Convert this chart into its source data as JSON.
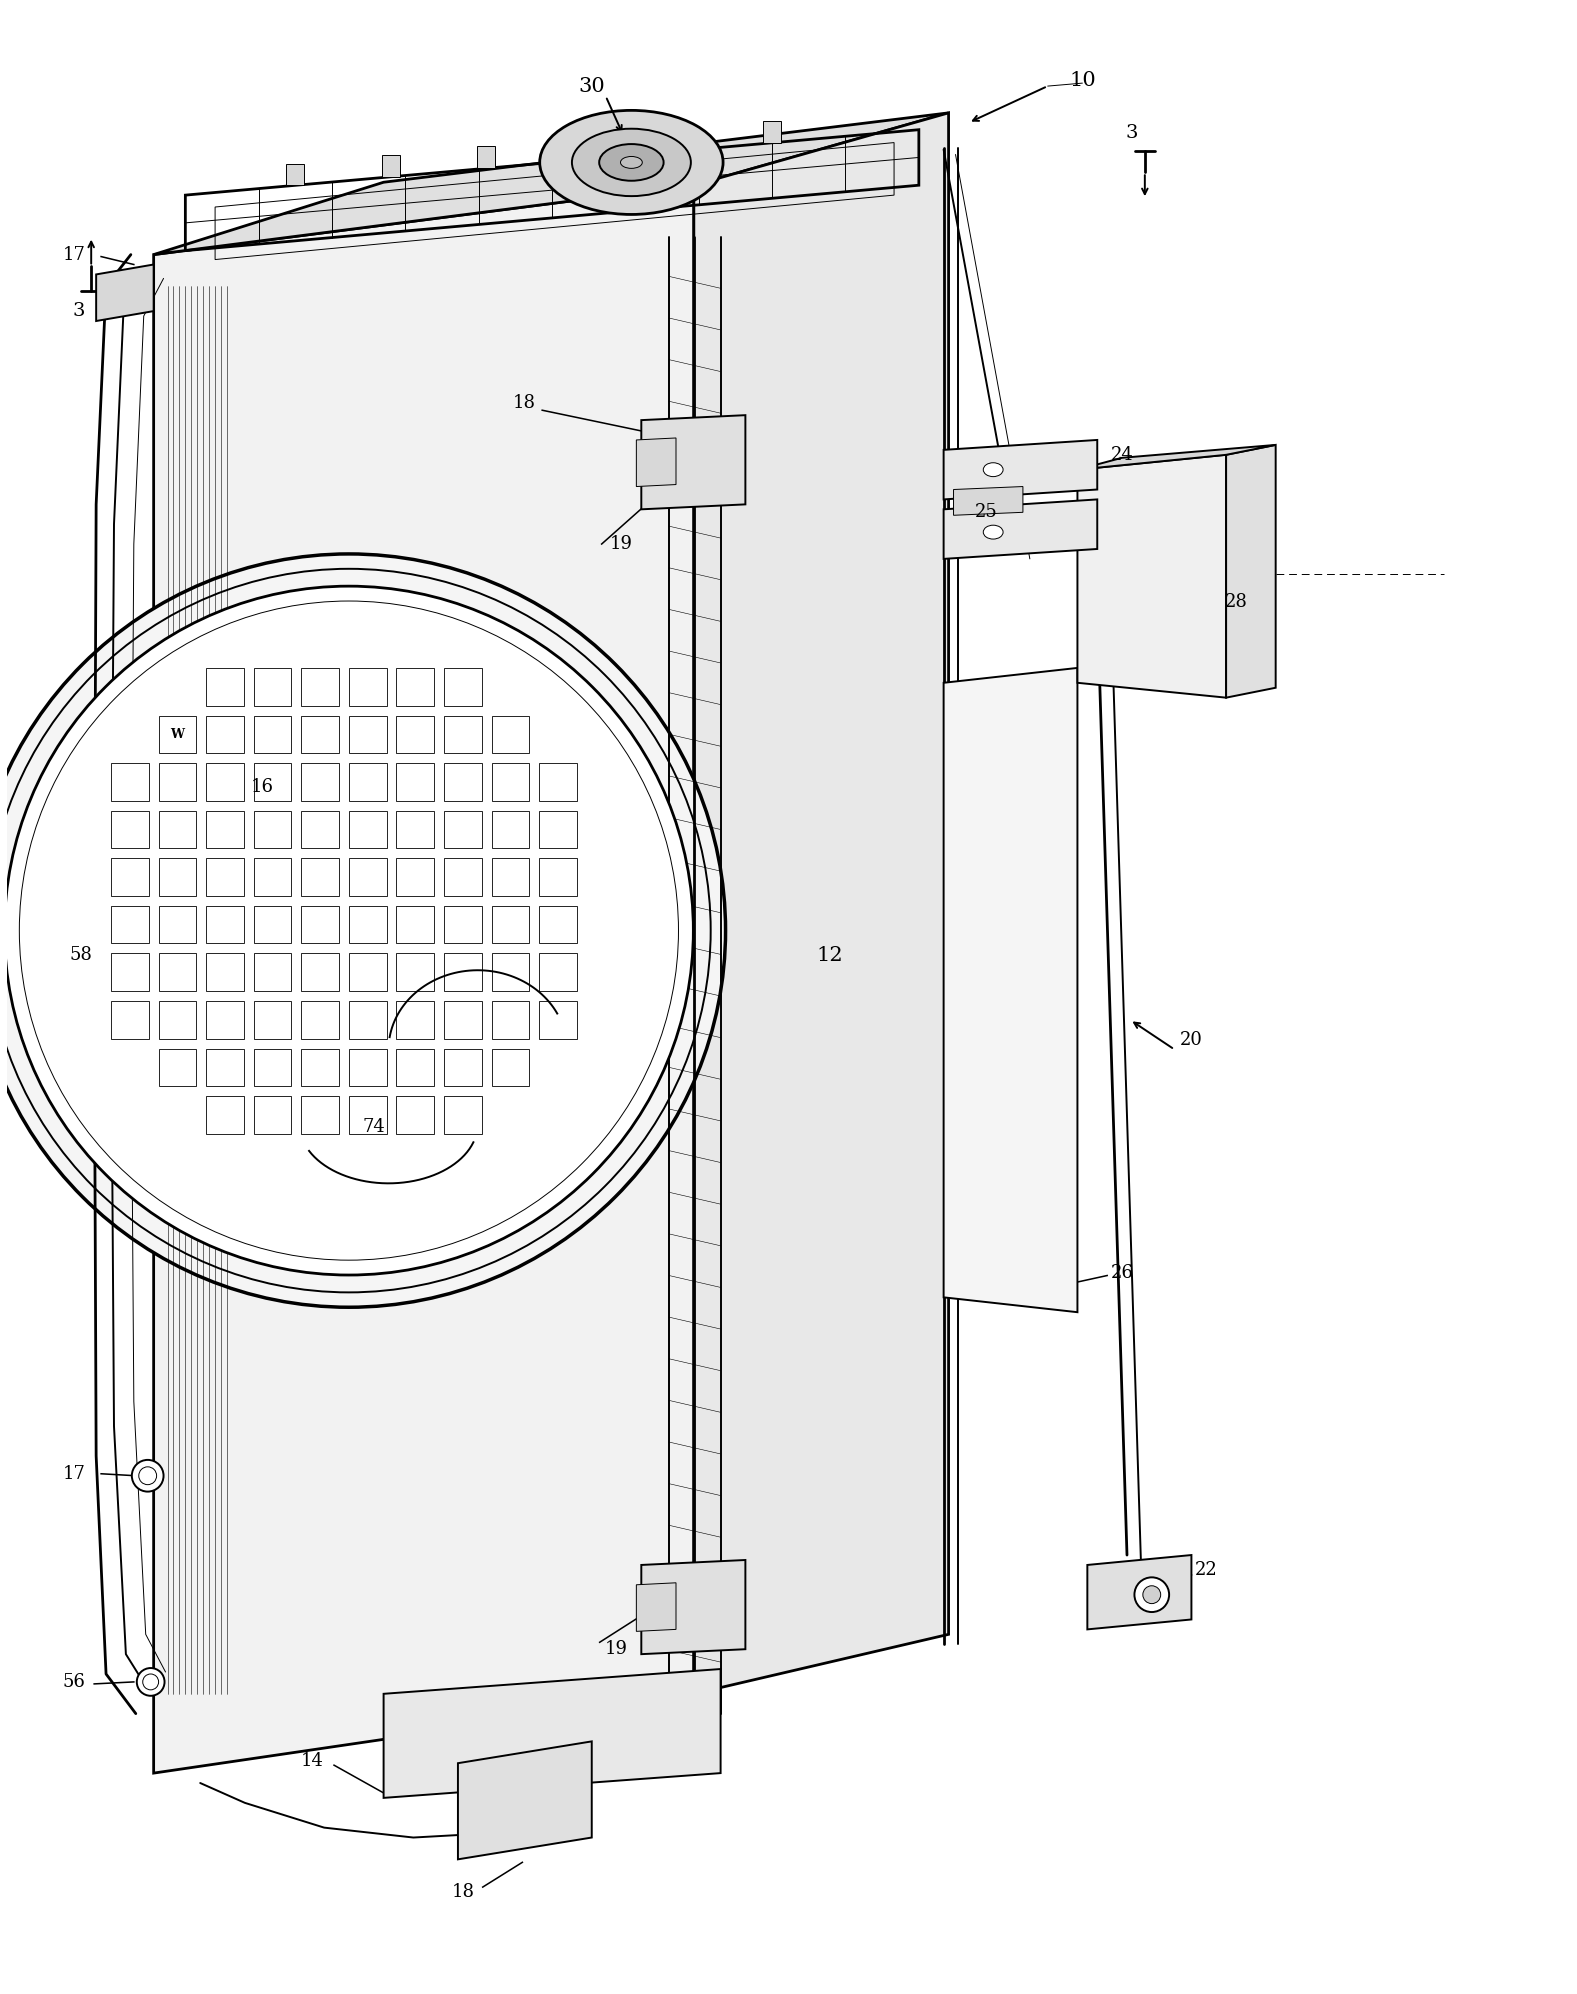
{
  "bg_color": "#ffffff",
  "fig_width": 15.77,
  "fig_height": 19.94,
  "lw_main": 1.4,
  "lw_thick": 2.0,
  "lw_thin": 0.7,
  "lw_xtra": 0.4,
  "font_size": 13
}
